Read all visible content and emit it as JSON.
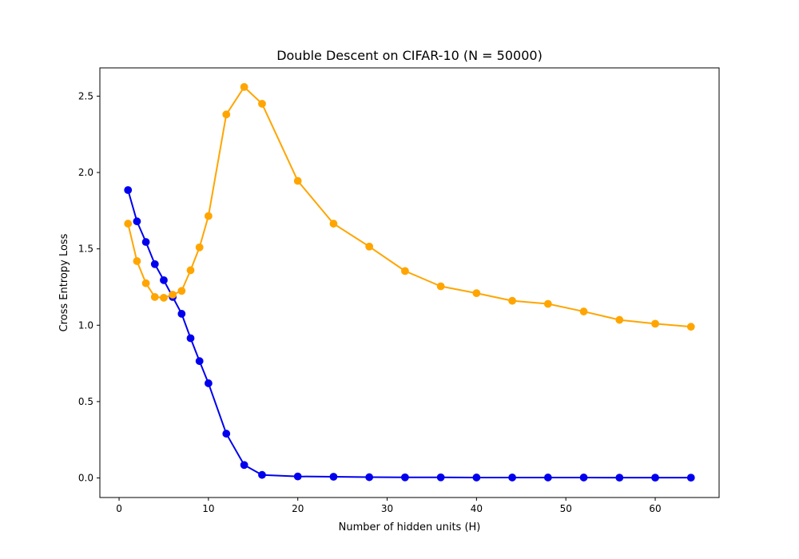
{
  "chart_data": {
    "type": "line",
    "title": "Double Descent on CIFAR-10 (N = 50000)",
    "xlabel": "Number of hidden units (H)",
    "ylabel": "Cross Entropy Loss",
    "xlim": [
      -2.15,
      67.15
    ],
    "ylim": [
      -0.128,
      2.685
    ],
    "xticks": [
      0,
      10,
      20,
      30,
      40,
      50,
      60
    ],
    "xtick_labels": [
      "0",
      "10",
      "20",
      "30",
      "40",
      "50",
      "60"
    ],
    "yticks": [
      0.0,
      0.5,
      1.0,
      1.5,
      2.0,
      2.5
    ],
    "ytick_labels": [
      "0.0",
      "0.5",
      "1.0",
      "1.5",
      "2.0",
      "2.5"
    ],
    "grid": false,
    "x": [
      1,
      2,
      3,
      4,
      5,
      6,
      7,
      8,
      9,
      10,
      12,
      14,
      16,
      20,
      24,
      28,
      32,
      36,
      40,
      44,
      48,
      52,
      56,
      60,
      64
    ],
    "series": [
      {
        "color": "#0000ee",
        "marker": "circle",
        "values": [
          1.885,
          1.68,
          1.545,
          1.4,
          1.295,
          1.185,
          1.075,
          0.915,
          0.765,
          0.62,
          0.29,
          0.085,
          0.02,
          0.01,
          0.008,
          0.005,
          0.004,
          0.004,
          0.003,
          0.003,
          0.003,
          0.003,
          0.002,
          0.002,
          0.002
        ]
      },
      {
        "color": "#ffa500",
        "marker": "circle",
        "values": [
          1.665,
          1.42,
          1.275,
          1.185,
          1.18,
          1.2,
          1.225,
          1.36,
          1.51,
          1.715,
          2.38,
          2.56,
          2.45,
          1.945,
          1.665,
          1.515,
          1.355,
          1.255,
          1.21,
          1.16,
          1.14,
          1.09,
          1.035,
          1.01,
          0.99
        ]
      }
    ]
  }
}
